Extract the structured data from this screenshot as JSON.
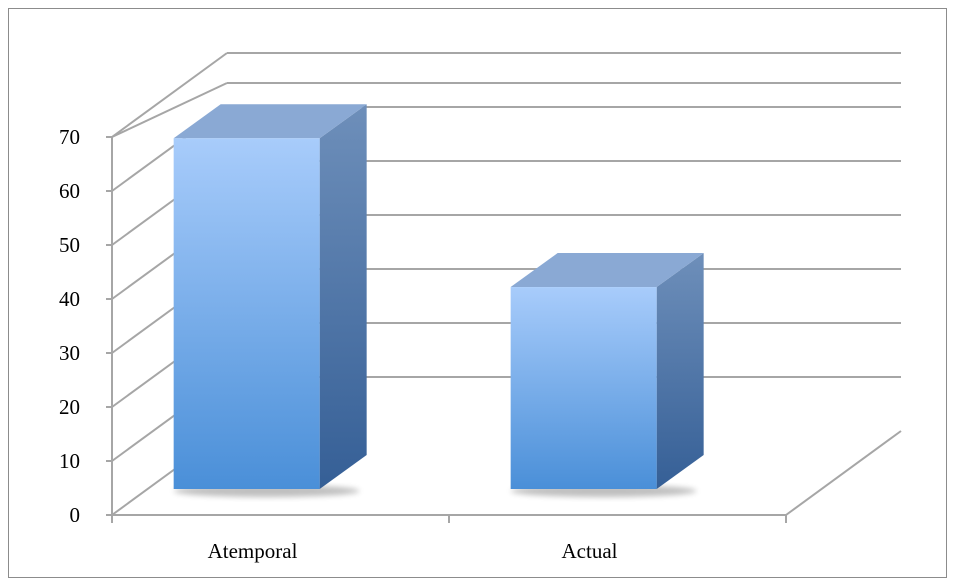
{
  "chart_data": {
    "type": "bar",
    "style": "3d-column",
    "title": "",
    "xlabel": "",
    "ylabel": "",
    "categories": [
      "Atemporal",
      "Actual"
    ],
    "series": [
      {
        "values": [
          66,
          38
        ]
      }
    ],
    "ylim": [
      0,
      70
    ],
    "yticks": [
      "0",
      "10",
      "20",
      "30",
      "40",
      "50",
      "60",
      "70"
    ],
    "grid": true,
    "legend": "none",
    "colors": {
      "bar_top": "#a8ccfb",
      "bar_bottom": "#4a8fd8",
      "bar_side": "#3d6fa8",
      "bar_cap": "#8aa9d4",
      "grid": "#a6a6a6",
      "frame": "#8c8c8c"
    }
  }
}
